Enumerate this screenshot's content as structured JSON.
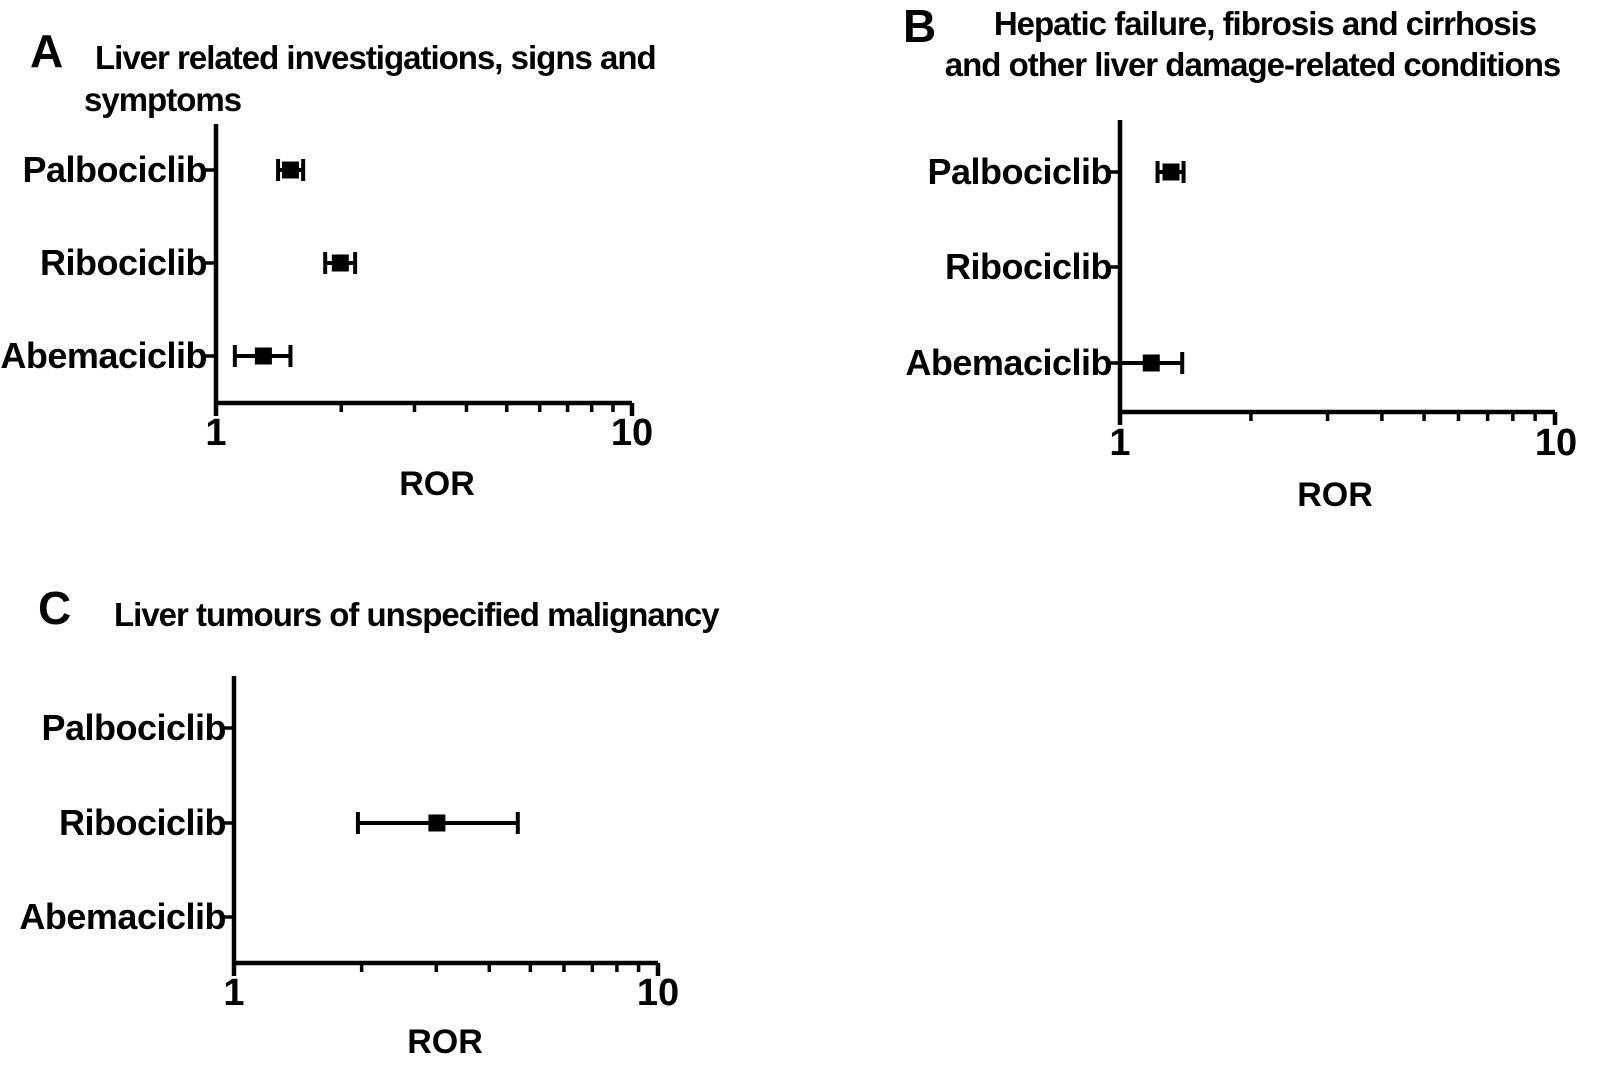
{
  "figure": {
    "background": "#ffffff",
    "ink_color": "#000000",
    "marker": "filled-square",
    "error_bars": "95% CI with end caps"
  },
  "chart_data": [
    {
      "type": "scatter",
      "panel": "A",
      "title": "Liver related investigations, signs and symptoms",
      "title_lines": [
        "Liver related investigations, signs and",
        "symptoms"
      ],
      "categories": [
        "Palbociclib",
        "Ribociclib",
        "Abemaciclib"
      ],
      "points": [
        {
          "drug": "Palbociclib",
          "ror": 1.51,
          "ci_low": 1.41,
          "ci_high": 1.62
        },
        {
          "drug": "Ribociclib",
          "ror": 1.99,
          "ci_low": 1.83,
          "ci_high": 2.16
        },
        {
          "drug": "Abemaciclib",
          "ror": 1.3,
          "ci_low": 1.11,
          "ci_high": 1.51
        }
      ],
      "xlabel": "ROR",
      "xscale": "log",
      "xlim": [
        1,
        10
      ],
      "xtick_labels": [
        "1",
        "10"
      ],
      "grid": false,
      "legend": false
    },
    {
      "type": "scatter",
      "panel": "B",
      "title": "Hepatic failure, fibrosis and cirrhosis and other liver damage-related conditions",
      "title_lines": [
        "Hepatic failure, fibrosis and cirrhosis",
        "and other liver damage-related conditions"
      ],
      "categories": [
        "Palbociclib",
        "Ribociclib",
        "Abemaciclib"
      ],
      "points": [
        {
          "drug": "Palbociclib",
          "ror": 1.31,
          "ci_low": 1.22,
          "ci_high": 1.4
        },
        {
          "drug": "Ribociclib",
          "ror": null,
          "ci_low": null,
          "ci_high": null
        },
        {
          "drug": "Abemaciclib",
          "ror": 1.18,
          "ci_low": 1.0,
          "ci_high": 1.39
        }
      ],
      "xlabel": "ROR",
      "xscale": "log",
      "xlim": [
        1,
        10
      ],
      "xtick_labels": [
        "1",
        "10"
      ],
      "grid": false,
      "legend": false
    },
    {
      "type": "scatter",
      "panel": "C",
      "title": "Liver tumours of unspecified malignancy",
      "title_lines": [
        "Liver tumours of unspecified malignancy"
      ],
      "categories": [
        "Palbociclib",
        "Ribociclib",
        "Abemaciclib"
      ],
      "points": [
        {
          "drug": "Palbociclib",
          "ror": null,
          "ci_low": null,
          "ci_high": null
        },
        {
          "drug": "Ribociclib",
          "ror": 3.01,
          "ci_low": 1.96,
          "ci_high": 4.67
        },
        {
          "drug": "Abemaciclib",
          "ror": null,
          "ci_low": null,
          "ci_high": null
        }
      ],
      "xlabel": "ROR",
      "xscale": "log",
      "xlim": [
        1,
        10
      ],
      "xtick_labels": [
        "1",
        "10"
      ],
      "grid": false,
      "legend": false
    }
  ]
}
